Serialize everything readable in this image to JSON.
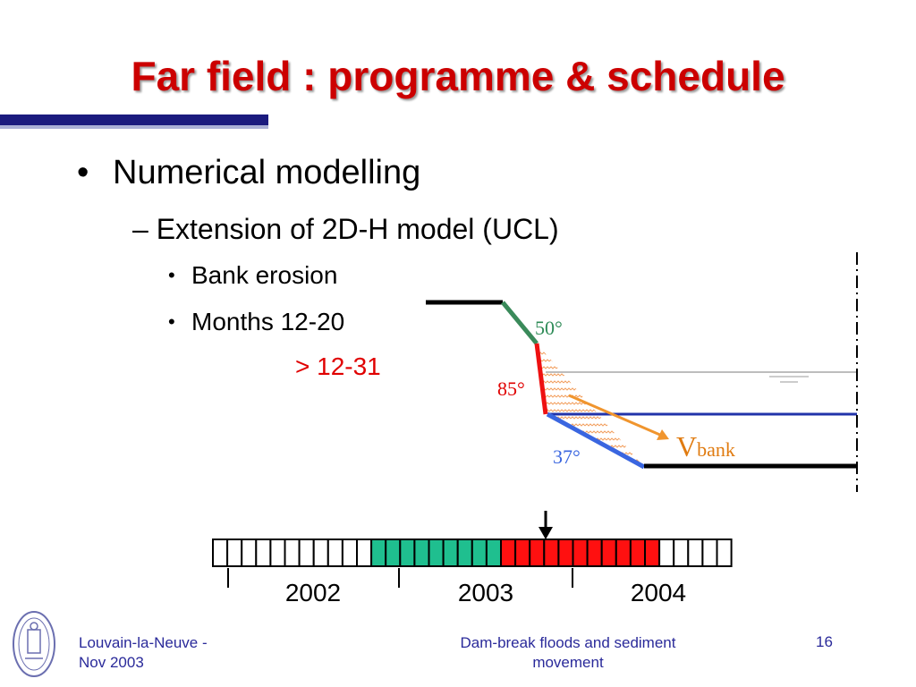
{
  "slide": {
    "title": "Far field : programme & schedule",
    "bullets": {
      "level1": "Numerical modelling",
      "level2": "– Extension of 2D-H model (UCL)",
      "level3": [
        "Bank erosion",
        "Months 12-20"
      ],
      "extra": "> 12-31"
    },
    "diagram": {
      "angle_top": "50°",
      "angle_mid": "85°",
      "angle_low": "37°",
      "velocity_main": "V",
      "velocity_sub": "bank",
      "colors": {
        "angle_top": "#2e8b57",
        "angle_mid": "#e00000",
        "angle_low": "#3a66e0",
        "velocity": "#e07b10"
      }
    },
    "timeline": {
      "years": [
        "2002",
        "2003",
        "2004"
      ],
      "months": [
        "white",
        "white",
        "white",
        "white",
        "white",
        "white",
        "white",
        "white",
        "white",
        "white",
        "white",
        "green",
        "green",
        "green",
        "green",
        "green",
        "green",
        "green",
        "green",
        "green",
        "red",
        "red",
        "red",
        "red",
        "red",
        "red",
        "red",
        "red",
        "red",
        "red",
        "red",
        "white",
        "white",
        "white",
        "white",
        "white"
      ],
      "colors": {
        "green": "#1fbf8f",
        "red": "#ff1010",
        "white": "#ffffff"
      }
    },
    "footer": {
      "left_line1": "Louvain-la-Neuve -",
      "left_line2": "Nov 2003",
      "center_line1": "Dam-break floods and sediment",
      "center_line2": "movement",
      "page": "16"
    }
  }
}
